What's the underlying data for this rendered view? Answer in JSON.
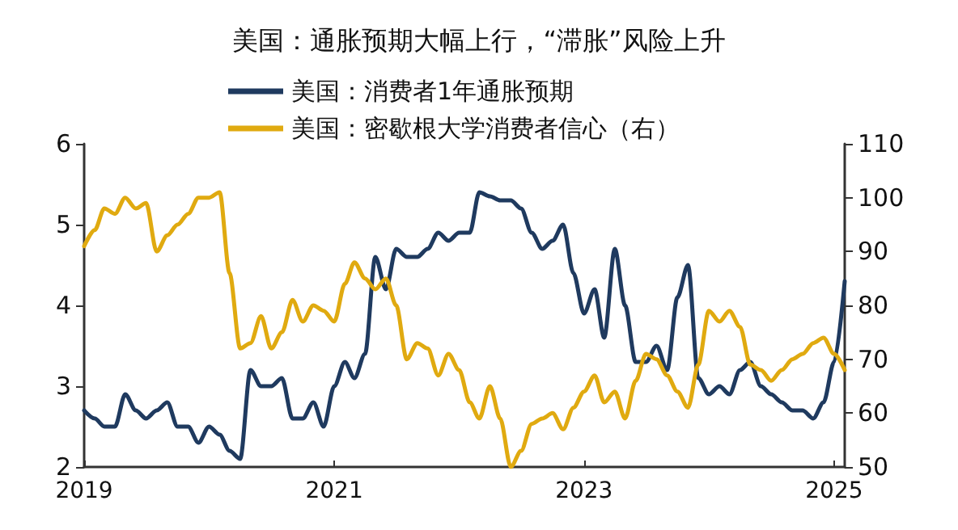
{
  "chart_data": {
    "type": "line",
    "title": "美国：通胀预期大幅上行，“滞胀”风险上升",
    "x": [
      "2019-01",
      "2019-02",
      "2019-03",
      "2019-04",
      "2019-05",
      "2019-06",
      "2019-07",
      "2019-08",
      "2019-09",
      "2019-10",
      "2019-11",
      "2019-12",
      "2020-01",
      "2020-02",
      "2020-03",
      "2020-04",
      "2020-05",
      "2020-06",
      "2020-07",
      "2020-08",
      "2020-09",
      "2020-10",
      "2020-11",
      "2020-12",
      "2021-01",
      "2021-02",
      "2021-03",
      "2021-04",
      "2021-05",
      "2021-06",
      "2021-07",
      "2021-08",
      "2021-09",
      "2021-10",
      "2021-11",
      "2021-12",
      "2022-01",
      "2022-02",
      "2022-03",
      "2022-04",
      "2022-05",
      "2022-06",
      "2022-07",
      "2022-08",
      "2022-09",
      "2022-10",
      "2022-11",
      "2022-12",
      "2023-01",
      "2023-02",
      "2023-03",
      "2023-04",
      "2023-05",
      "2023-06",
      "2023-07",
      "2023-08",
      "2023-09",
      "2023-10",
      "2023-11",
      "2023-12",
      "2024-01",
      "2024-02",
      "2024-03",
      "2024-04",
      "2024-05",
      "2024-06",
      "2024-07",
      "2024-08",
      "2024-09",
      "2024-10",
      "2024-11",
      "2024-12",
      "2025-01",
      "2025-02"
    ],
    "series": [
      {
        "name": "美国：消费者1年通胀预期",
        "color": "#1f3a5f",
        "values": [
          2.7,
          2.6,
          2.5,
          2.5,
          2.9,
          2.7,
          2.6,
          2.7,
          2.8,
          2.5,
          2.5,
          2.3,
          2.5,
          2.4,
          2.2,
          2.1,
          3.2,
          3.0,
          3.0,
          3.1,
          2.6,
          2.6,
          2.8,
          2.5,
          3.0,
          3.3,
          3.1,
          3.4,
          4.6,
          4.2,
          4.7,
          4.6,
          4.6,
          4.7,
          4.9,
          4.8,
          4.9,
          4.9,
          5.4,
          5.35,
          5.3,
          5.3,
          5.2,
          4.9,
          4.7,
          4.8,
          5.0,
          4.4,
          3.9,
          4.2,
          3.6,
          4.7,
          4.0,
          3.3,
          3.3,
          3.5,
          3.2,
          4.1,
          4.5,
          3.1,
          2.9,
          3.0,
          2.9,
          3.2,
          3.3,
          3.0,
          2.9,
          2.8,
          2.7,
          2.7,
          2.6,
          2.8,
          3.3,
          4.3
        ]
      },
      {
        "name": "美国：密歇根大学消费者信心（右）",
        "color": "#e0aa10",
        "axis": "y2",
        "values": [
          91,
          94,
          98,
          97,
          100,
          98,
          99,
          90,
          93,
          95,
          97,
          100,
          100,
          101,
          86,
          72,
          73,
          78,
          72,
          75,
          81,
          77,
          80,
          79,
          77,
          84,
          88,
          85,
          83,
          85,
          80,
          70,
          73,
          72,
          67,
          71,
          68,
          62,
          59,
          65,
          59,
          50,
          53,
          58,
          59,
          60,
          57,
          61,
          64,
          67,
          62,
          64,
          59,
          66,
          71,
          70,
          67,
          64,
          61,
          69,
          79,
          77,
          79,
          76,
          69,
          68,
          66,
          68,
          70,
          71,
          73,
          74,
          71,
          68
        ]
      }
    ],
    "xlim": [
      "2019-01",
      "2025-02"
    ],
    "xticks": [
      "2019",
      "2021",
      "2023",
      "2025"
    ],
    "ylim": [
      2,
      6
    ],
    "yticks": [
      2,
      3,
      4,
      5,
      6
    ],
    "y2lim": [
      50,
      110
    ],
    "y2ticks": [
      50,
      60,
      70,
      80,
      90,
      100,
      110
    ],
    "legend": "top",
    "grid": false,
    "marker": "none",
    "line_style": "solid"
  }
}
